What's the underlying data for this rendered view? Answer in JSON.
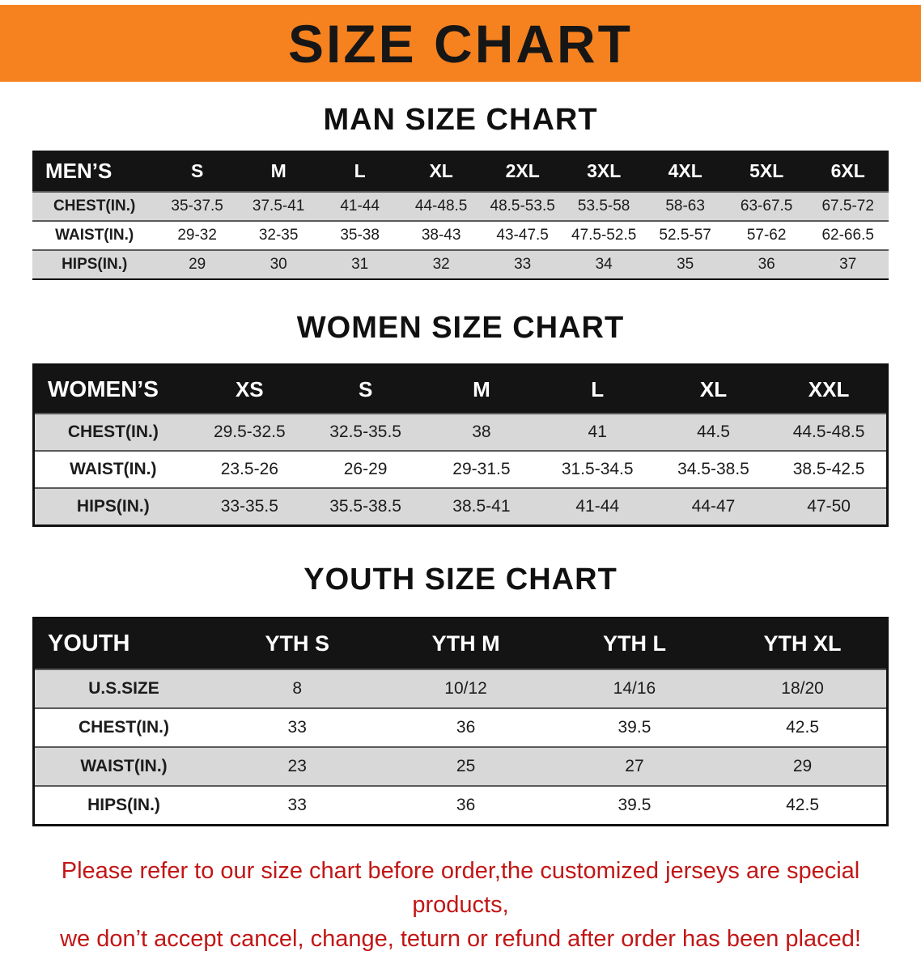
{
  "banner": {
    "title": "SIZE CHART",
    "bg_color": "#f5821f"
  },
  "sections": [
    {
      "id": "men",
      "heading": "MAN SIZE CHART",
      "table": {
        "header": [
          "MEN’S",
          "S",
          "M",
          "L",
          "XL",
          "2XL",
          "3XL",
          "4XL",
          "5XL",
          "6XL"
        ],
        "rows": [
          [
            "CHEST(IN.)",
            "35-37.5",
            "37.5-41",
            "41-44",
            "44-48.5",
            "48.5-53.5",
            "53.5-58",
            "58-63",
            "63-67.5",
            "67.5-72"
          ],
          [
            "WAIST(IN.)",
            "29-32",
            "32-35",
            "35-38",
            "38-43",
            "43-47.5",
            "47.5-52.5",
            "52.5-57",
            "57-62",
            "62-66.5"
          ],
          [
            "HIPS(IN.)",
            "29",
            "30",
            "31",
            "32",
            "33",
            "34",
            "35",
            "36",
            "37"
          ]
        ]
      }
    },
    {
      "id": "women",
      "heading": "WOMEN SIZE CHART",
      "table": {
        "header": [
          "WOMEN’S",
          "XS",
          "S",
          "M",
          "L",
          "XL",
          "XXL"
        ],
        "rows": [
          [
            "CHEST(IN.)",
            "29.5-32.5",
            "32.5-35.5",
            "38",
            "41",
            "44.5",
            "44.5-48.5"
          ],
          [
            "WAIST(IN.)",
            "23.5-26",
            "26-29",
            "29-31.5",
            "31.5-34.5",
            "34.5-38.5",
            "38.5-42.5"
          ],
          [
            "HIPS(IN.)",
            "33-35.5",
            "35.5-38.5",
            "38.5-41",
            "41-44",
            "44-47",
            "47-50"
          ]
        ]
      }
    },
    {
      "id": "youth",
      "heading": "YOUTH SIZE CHART",
      "table": {
        "header": [
          "YOUTH",
          "YTH S",
          "YTH M",
          "YTH L",
          "YTH XL"
        ],
        "rows": [
          [
            "U.S.SIZE",
            "8",
            "10/12",
            "14/16",
            "18/20"
          ],
          [
            "CHEST(IN.)",
            "33",
            "36",
            "39.5",
            "42.5"
          ],
          [
            "WAIST(IN.)",
            "23",
            "25",
            "27",
            "29"
          ],
          [
            "HIPS(IN.)",
            "33",
            "36",
            "39.5",
            "42.5"
          ]
        ]
      }
    }
  ],
  "disclaimer": {
    "color": "#c21616",
    "lines": [
      "Please refer to our size chart before order,the customized jerseys are special products,",
      "we don’t accept cancel, change, teturn or refund after order has been placed!"
    ]
  }
}
